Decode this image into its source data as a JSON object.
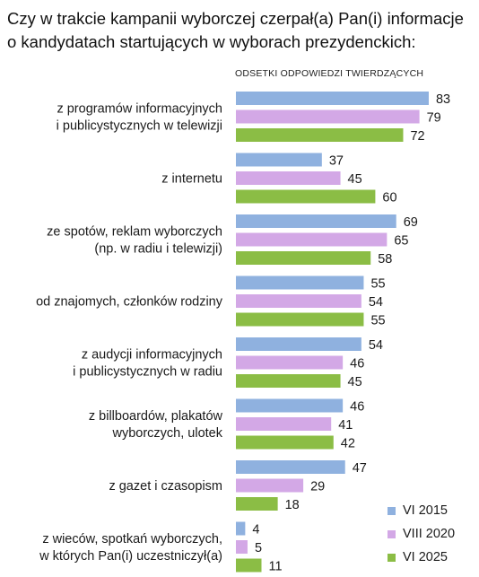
{
  "title": "Czy w trakcie kampanii wyborczej czerpał(a) Pan(i) informacje o kandydatach startujących w wyborach prezydenckich:",
  "chart_data": {
    "type": "bar",
    "orientation": "horizontal",
    "title": "Czy w trakcie kampanii wyborczej czerpał(a) Pan(i) informacje o kandydatach startujących w wyborach prezydenckich:",
    "subtitle": "ODSETKI ODPOWIEDZI TWIERDZĄCYCH",
    "xlim": [
      0,
      100
    ],
    "grid": false,
    "legend_position": "bottom-right",
    "categories": [
      [
        "z programów informacyjnych",
        "i publicystycznych w telewizji"
      ],
      [
        "z internetu"
      ],
      [
        "ze spotów, reklam wyborczych",
        "(np. w radiu i telewizji)"
      ],
      [
        "od znajomych, członków rodziny"
      ],
      [
        "z audycji informacyjnych",
        "i publicystycznych w radiu"
      ],
      [
        "z billboardów, plakatów",
        "wyborczych, ulotek"
      ],
      [
        "z gazet i czasopism"
      ],
      [
        "z wieców, spotkań wyborczych,",
        "w których Pan(i) uczestniczył(a)"
      ]
    ],
    "series": [
      {
        "name": "VI 2015",
        "color": "#8fb1df",
        "values": [
          83,
          37,
          69,
          55,
          54,
          46,
          47,
          4
        ]
      },
      {
        "name": "VIII 2020",
        "color": "#d3a8e6",
        "values": [
          79,
          45,
          65,
          54,
          46,
          41,
          29,
          5
        ]
      },
      {
        "name": "VI 2025",
        "color": "#8bbd45",
        "values": [
          72,
          60,
          58,
          55,
          45,
          42,
          18,
          11
        ]
      }
    ]
  }
}
